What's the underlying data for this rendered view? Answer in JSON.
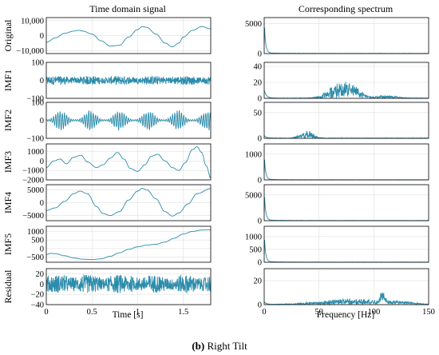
{
  "caption": {
    "letter": "(b)",
    "text": " Right Tilt"
  },
  "chart_data": [
    {
      "type": "line",
      "column_title": "Time domain signal",
      "xlabel": "Time [s]",
      "xlim": [
        0,
        1.8
      ],
      "xticks": [
        "0",
        "0.5",
        "1",
        "1.5"
      ],
      "xtick_values": [
        0,
        0.5,
        1,
        1.5
      ],
      "rows": [
        {
          "label": "Original",
          "ylim": [
            -12000,
            12000
          ],
          "yticks": [
            {
              "v": 10000,
              "t": "10,000"
            },
            {
              "v": 0,
              "t": "0"
            },
            {
              "v": -10000,
              "t": "−10,000"
            }
          ],
          "kind": "smooth",
          "x": [
            0,
            0.1,
            0.2,
            0.3,
            0.35,
            0.4,
            0.5,
            0.6,
            0.7,
            0.8,
            0.9,
            1.0,
            1.05,
            1.1,
            1.2,
            1.3,
            1.38,
            1.45,
            1.5,
            1.6,
            1.7,
            1.8
          ],
          "y": [
            -4500,
            -1500,
            1500,
            3000,
            3500,
            3000,
            1000,
            -3500,
            -7000,
            -6500,
            -1000,
            4000,
            6000,
            5500,
            1000,
            -5000,
            -7500,
            -5000,
            -1000,
            3500,
            6000,
            4500
          ]
        },
        {
          "label": "IMF1",
          "ylim": [
            -100,
            100
          ],
          "yticks": [
            {
              "v": 100,
              "t": "100"
            },
            {
              "v": 0,
              "t": "0"
            },
            {
              "v": -100,
              "t": "−100"
            }
          ],
          "kind": "noise",
          "amplitude": 25
        },
        {
          "label": "IMF2",
          "ylim": [
            -100,
            100
          ],
          "yticks": [
            {
              "v": 100,
              "t": "100"
            },
            {
              "v": 0,
              "t": "0"
            },
            {
              "v": -100,
              "t": "−100"
            }
          ],
          "kind": "bursts",
          "amplitude": 50
        },
        {
          "label": "IMF3",
          "ylim": [
            -2000,
            1800
          ],
          "yticks": [
            {
              "v": 1000,
              "t": "1000"
            },
            {
              "v": 0,
              "t": "0"
            },
            {
              "v": -1000,
              "t": "−1000"
            },
            {
              "v": -2000,
              "t": "−2000"
            }
          ],
          "kind": "smooth",
          "x": [
            0,
            0.08,
            0.15,
            0.22,
            0.3,
            0.38,
            0.45,
            0.55,
            0.62,
            0.7,
            0.78,
            0.85,
            0.92,
            1.0,
            1.08,
            1.15,
            1.22,
            1.3,
            1.38,
            1.45,
            1.52,
            1.6,
            1.65,
            1.7,
            1.75,
            1.8
          ],
          "y": [
            -700,
            0,
            200,
            -300,
            400,
            600,
            -100,
            -700,
            -400,
            300,
            900,
            200,
            -800,
            -1100,
            -400,
            500,
            700,
            0,
            -700,
            -1000,
            -200,
            1200,
            1500,
            900,
            -500,
            -1800
          ]
        },
        {
          "label": "IMF4",
          "ylim": [
            -7000,
            7000
          ],
          "yticks": [
            {
              "v": 5000,
              "t": "5000"
            },
            {
              "v": 0,
              "t": "0"
            },
            {
              "v": -5000,
              "t": "−5000"
            }
          ],
          "kind": "smooth",
          "x": [
            0,
            0.1,
            0.2,
            0.3,
            0.37,
            0.45,
            0.55,
            0.62,
            0.7,
            0.8,
            0.9,
            1.0,
            1.05,
            1.1,
            1.2,
            1.3,
            1.38,
            1.45,
            1.55,
            1.65,
            1.8
          ],
          "y": [
            -3000,
            -2000,
            500,
            3500,
            4500,
            3500,
            -1500,
            -4200,
            -5000,
            -3500,
            1000,
            4500,
            5600,
            5000,
            1500,
            -3500,
            -5200,
            -4000,
            -500,
            3500,
            5500
          ]
        },
        {
          "label": "IMF5",
          "ylim": [
            -800,
            1300
          ],
          "yticks": [
            {
              "v": 1000,
              "t": "1000"
            },
            {
              "v": 500,
              "t": "500"
            },
            {
              "v": 0,
              "t": "0"
            },
            {
              "v": -500,
              "t": "−500"
            }
          ],
          "kind": "smooth",
          "x": [
            0,
            0.05,
            0.1,
            0.2,
            0.3,
            0.4,
            0.5,
            0.6,
            0.7,
            0.8,
            0.9,
            1.0,
            1.1,
            1.2,
            1.3,
            1.4,
            1.5,
            1.6,
            1.7,
            1.8
          ],
          "y": [
            -350,
            -280,
            -300,
            -420,
            -550,
            -620,
            -640,
            -600,
            -450,
            -250,
            -50,
            100,
            200,
            250,
            380,
            600,
            850,
            1000,
            1080,
            1100
          ]
        },
        {
          "label": "Residual",
          "ylim": [
            -40,
            30
          ],
          "yticks": [
            {
              "v": 20,
              "t": "20"
            },
            {
              "v": 0,
              "t": "0"
            },
            {
              "v": -20,
              "t": "−20"
            },
            {
              "v": -40,
              "t": "−40"
            }
          ],
          "kind": "noise",
          "amplitude": 18
        }
      ]
    },
    {
      "type": "line",
      "column_title": "Corresponding spectrum",
      "xlabel": "Frequency [Hz]",
      "xlim": [
        0,
        150
      ],
      "xticks": [
        "0",
        "50",
        "100",
        "150"
      ],
      "xtick_values": [
        0,
        50,
        100,
        150
      ],
      "rows": [
        {
          "label": "Original",
          "ylim": [
            0,
            6000
          ],
          "yticks": [
            {
              "v": 5000,
              "t": "5000"
            },
            {
              "v": 0,
              "t": "0"
            }
          ],
          "kind": "peak",
          "peak": 5200
        },
        {
          "label": "IMF1",
          "ylim": [
            0,
            45
          ],
          "yticks": [
            {
              "v": 40,
              "t": "40"
            },
            {
              "v": 20,
              "t": "20"
            },
            {
              "v": 0,
              "t": "0"
            }
          ],
          "kind": "band",
          "peak": 10,
          "bands": [
            {
              "center": 70,
              "width": 15,
              "height": 12
            },
            {
              "center": 82,
              "width": 10,
              "height": 5
            },
            {
              "center": 110,
              "width": 15,
              "height": 2
            }
          ]
        },
        {
          "label": "IMF2",
          "ylim": [
            0,
            70
          ],
          "yticks": [
            {
              "v": 50,
              "t": "50"
            },
            {
              "v": 0,
              "t": "0"
            }
          ],
          "kind": "band",
          "peak": 5,
          "bands": [
            {
              "center": 40,
              "width": 7,
              "height": 9
            },
            {
              "center": 30,
              "width": 4,
              "height": 2
            }
          ]
        },
        {
          "label": "IMF3",
          "ylim": [
            0,
            1400
          ],
          "yticks": [
            {
              "v": 1000,
              "t": "1000"
            },
            {
              "v": 0,
              "t": "0"
            }
          ],
          "kind": "peak",
          "peak": 950
        },
        {
          "label": "IMF4",
          "ylim": [
            0,
            7000
          ],
          "yticks": [
            {
              "v": 5000,
              "t": "5000"
            },
            {
              "v": 0,
              "t": "0"
            }
          ],
          "kind": "peak",
          "peak": 5500
        },
        {
          "label": "IMF5",
          "ylim": [
            0,
            1400
          ],
          "yticks": [
            {
              "v": 1000,
              "t": "1000"
            },
            {
              "v": 500,
              "t": "500"
            },
            {
              "v": 0,
              "t": "0"
            }
          ],
          "kind": "peak",
          "peak": 1050
        },
        {
          "label": "Residual",
          "ylim": [
            0,
            30
          ],
          "yticks": [
            {
              "v": 20,
              "t": "20"
            },
            {
              "v": 0,
              "t": "0"
            }
          ],
          "kind": "band",
          "peak": 2,
          "bands": [
            {
              "center": 80,
              "width": 40,
              "height": 3
            },
            {
              "center": 108,
              "width": 3,
              "height": 6
            },
            {
              "center": 125,
              "width": 15,
              "height": 1.5
            }
          ]
        }
      ]
    }
  ]
}
